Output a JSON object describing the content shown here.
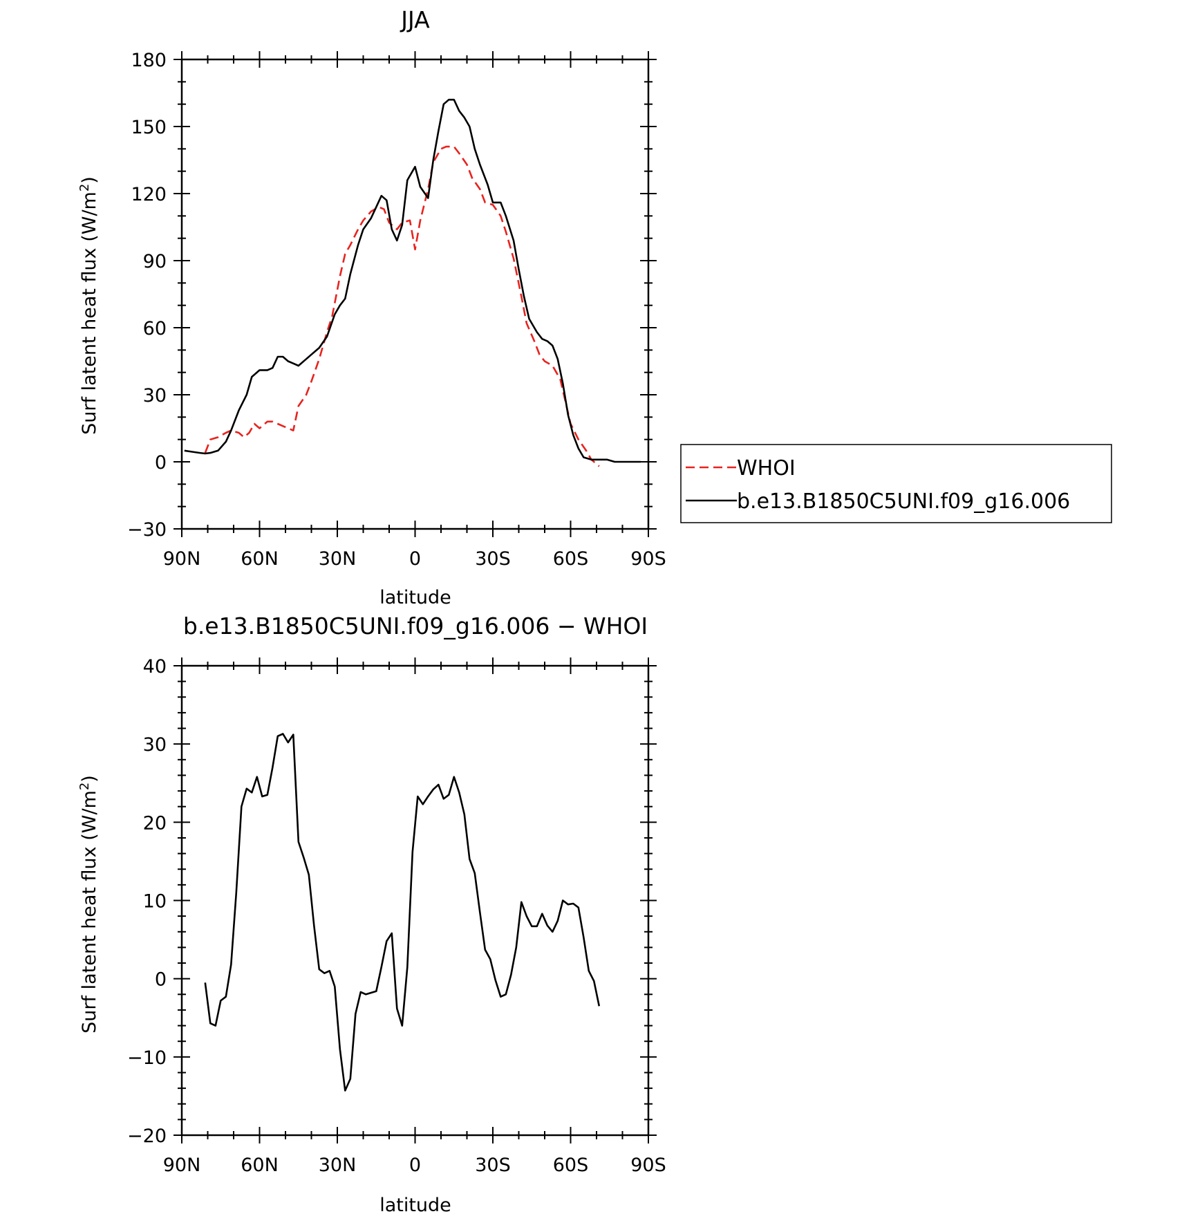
{
  "chart_data": [
    {
      "type": "line",
      "title": "JJA",
      "xlabel": "latitude",
      "ylabel": "Surf latent heat flux (W/m²)",
      "ylabel_main": "Surf latent heat flux (W/m",
      "ylabel_sup": "2",
      "ylabel_end": ")",
      "xlim": [
        90,
        -90
      ],
      "ylim": [
        -30,
        180
      ],
      "xticks": [
        90,
        60,
        30,
        0,
        -30,
        -60,
        -90
      ],
      "xtick_labels": [
        "90N",
        "60N",
        "30N",
        "0",
        "30S",
        "60S",
        "90S"
      ],
      "yticks": [
        -30,
        0,
        30,
        60,
        90,
        120,
        150,
        180
      ],
      "ytick_labels": [
        "−30",
        "0",
        "30",
        "60",
        "90",
        "120",
        "150",
        "180"
      ],
      "legend_position": "right",
      "series": [
        {
          "name": "WHOI",
          "color": "#e8231f",
          "dash": "dashed",
          "x": [
            81,
            79,
            76,
            73,
            71,
            68,
            66,
            64,
            62,
            60,
            57,
            55,
            53,
            51,
            49,
            47,
            45,
            42,
            40,
            37,
            34,
            32,
            29,
            27,
            25,
            22,
            20,
            17,
            14,
            12,
            10,
            7,
            5,
            2,
            0,
            -2,
            -5,
            -7,
            -10,
            -12,
            -15,
            -17,
            -20,
            -22,
            -25,
            -27,
            -30,
            -33,
            -35,
            -38,
            -41,
            -43,
            -46,
            -48,
            -50,
            -53,
            -56,
            -58,
            -60,
            -63,
            -66,
            -68,
            -70,
            -71
          ],
          "y": [
            4,
            10,
            11,
            13,
            14,
            13,
            11,
            13,
            17,
            15,
            18,
            18,
            17,
            16,
            15,
            14,
            25,
            30,
            36,
            46,
            58,
            65,
            83,
            93,
            97,
            104,
            108,
            112,
            114,
            113,
            107,
            104,
            107,
            108,
            95,
            108,
            122,
            134,
            140,
            141,
            141,
            138,
            133,
            127,
            122,
            116,
            115,
            110,
            103,
            91,
            74,
            62,
            54,
            48,
            45,
            43,
            37,
            27,
            17,
            10,
            5,
            1,
            -1,
            -2
          ]
        },
        {
          "name": "b.e13.B1850C5UNI.f09_g16.006",
          "color": "#000000",
          "dash": "solid",
          "x": [
            89,
            86,
            83,
            81,
            79,
            76,
            73,
            71,
            68,
            65,
            63,
            60,
            57,
            55,
            53,
            51,
            49,
            47,
            45,
            42,
            40,
            37,
            34,
            31,
            29,
            27,
            25,
            22,
            20,
            17,
            15,
            13,
            11,
            9,
            7,
            5,
            3,
            0,
            -2,
            -5,
            -7,
            -9,
            -11,
            -13,
            -15,
            -17,
            -19,
            -21,
            -23,
            -25,
            -28,
            -30,
            -33,
            -35,
            -38,
            -40,
            -42,
            -44,
            -47,
            -49,
            -51,
            -53,
            -55,
            -57,
            -59,
            -61,
            -63,
            -65,
            -68,
            -71,
            -74,
            -77,
            -79,
            -82,
            -84,
            -87
          ],
          "y": [
            5,
            4.5,
            4,
            3.7,
            4,
            5,
            9,
            14,
            23,
            30,
            38,
            41,
            41,
            42,
            47,
            47,
            45,
            44,
            43,
            46,
            48,
            51,
            56,
            66,
            70,
            73,
            84,
            97,
            104,
            109,
            114,
            119,
            117,
            104,
            99,
            106,
            126,
            132,
            123,
            118,
            135,
            148,
            160,
            162,
            162,
            157,
            154,
            150,
            140,
            133,
            124,
            116,
            116,
            110,
            99,
            86,
            74,
            64,
            58,
            55,
            54,
            52,
            46,
            35,
            21,
            12,
            6,
            2,
            1,
            1,
            1,
            0,
            0,
            0,
            0,
            0
          ]
        }
      ]
    },
    {
      "type": "line",
      "title": "b.e13.B1850C5UNI.f09_g16.006 − WHOI",
      "xlabel": "latitude",
      "ylabel": "Surf latent heat flux (W/m²)",
      "ylabel_main": "Surf latent heat flux (W/m",
      "ylabel_sup": "2",
      "ylabel_end": ")",
      "xlim": [
        90,
        -90
      ],
      "ylim": [
        -20,
        40
      ],
      "xticks": [
        90,
        60,
        30,
        0,
        -30,
        -60,
        -90
      ],
      "xtick_labels": [
        "90N",
        "60N",
        "30N",
        "0",
        "30S",
        "60S",
        "90S"
      ],
      "yticks": [
        -20,
        -10,
        0,
        10,
        20,
        30,
        40
      ],
      "ytick_labels": [
        "−20",
        "−10",
        "0",
        "10",
        "20",
        "30",
        "40"
      ],
      "series": [
        {
          "color": "#000000",
          "dash": "solid",
          "x": [
            81,
            79,
            77,
            75,
            73,
            71,
            69,
            67,
            65,
            63,
            61,
            59,
            57,
            55,
            53,
            51,
            49,
            47,
            45,
            43,
            41,
            39,
            37,
            35,
            33,
            31,
            29,
            27,
            25,
            23,
            21,
            19,
            17,
            15,
            13,
            11,
            9,
            7,
            5,
            3,
            1,
            -1,
            -3,
            -5,
            -7,
            -9,
            -11,
            -13,
            -15,
            -17,
            -19,
            -21,
            -23,
            -25,
            -27,
            -29,
            -31,
            -33,
            -35,
            -37,
            -39,
            -41,
            -43,
            -45,
            -47,
            -49,
            -51,
            -53,
            -55,
            -57,
            -59,
            -61,
            -63,
            -65,
            -67,
            -69,
            -71
          ],
          "y": [
            -0.5,
            -5.7,
            -6,
            -2.8,
            -2.3,
            1.8,
            11,
            22,
            24.3,
            23.8,
            25.8,
            23.3,
            23.5,
            27,
            31,
            31.3,
            30.2,
            31.2,
            17.5,
            15.5,
            13.3,
            6.8,
            1.2,
            0.7,
            1,
            -1,
            -9,
            -14.3,
            -12.8,
            -4.5,
            -1.7,
            -2,
            -1.8,
            -1.6,
            1.5,
            4.8,
            5.8,
            -3.8,
            -6,
            1.5,
            16.2,
            23.3,
            22.3,
            23.3,
            24.2,
            24.8,
            23,
            23.5,
            25.8,
            23.8,
            21,
            15.3,
            13.5,
            8.5,
            3.7,
            2.5,
            -0.2,
            -2.3,
            -2,
            0.5,
            4,
            9.8,
            8,
            6.7,
            6.7,
            8.3,
            6.8,
            6,
            7.4,
            10,
            9.5,
            9.6,
            9.1,
            5.3,
            1,
            -0.3,
            -3.5
          ]
        }
      ]
    }
  ],
  "legend": {
    "entries": [
      {
        "label": "WHOI",
        "color": "#e8231f",
        "dash": "dashed"
      },
      {
        "label": "b.e13.B1850C5UNI.f09_g16.006",
        "color": "#000000",
        "dash": "solid"
      }
    ]
  }
}
